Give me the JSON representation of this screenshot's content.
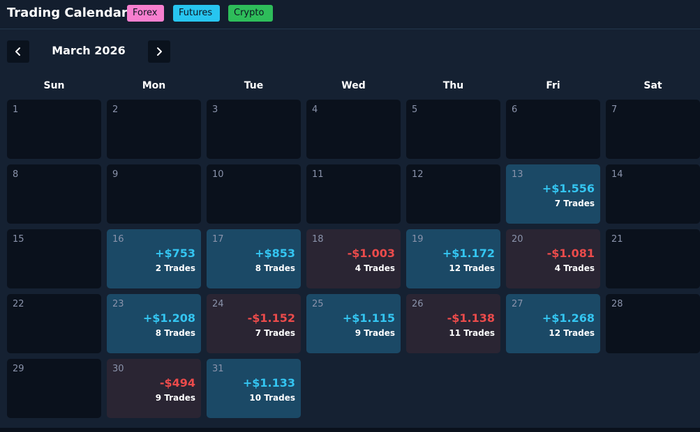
{
  "header": {
    "title": "Trading Calendar",
    "tags": [
      {
        "label": "Forex",
        "color": "#f77fcf"
      },
      {
        "label": "Futures",
        "color": "#27c5f0"
      },
      {
        "label": "Crypto",
        "color": "#2ebd5a"
      }
    ]
  },
  "nav": {
    "month_label": "March 2026",
    "prev_icon": "chevron-left-icon",
    "next_icon": "chevron-right-icon"
  },
  "weekdays": [
    "Sun",
    "Mon",
    "Tue",
    "Wed",
    "Thu",
    "Fri",
    "Sat"
  ],
  "colors": {
    "profit_bg": "#1b4966",
    "loss_bg": "#2a2533",
    "profit_text": "#34c5f1",
    "loss_text": "#ec4b4b"
  },
  "days": [
    {
      "day": "1"
    },
    {
      "day": "2"
    },
    {
      "day": "3"
    },
    {
      "day": "4"
    },
    {
      "day": "5"
    },
    {
      "day": "6"
    },
    {
      "day": "7"
    },
    {
      "day": "8"
    },
    {
      "day": "9"
    },
    {
      "day": "10"
    },
    {
      "day": "11"
    },
    {
      "day": "12"
    },
    {
      "day": "13",
      "pnl": "+$1.556",
      "trades": "7 Trades",
      "result": "profit"
    },
    {
      "day": "14"
    },
    {
      "day": "15"
    },
    {
      "day": "16",
      "pnl": "+$753",
      "trades": "2 Trades",
      "result": "profit"
    },
    {
      "day": "17",
      "pnl": "+$853",
      "trades": "8 Trades",
      "result": "profit"
    },
    {
      "day": "18",
      "pnl": "-$1.003",
      "trades": "4 Trades",
      "result": "loss"
    },
    {
      "day": "19",
      "pnl": "+$1.172",
      "trades": "12 Trades",
      "result": "profit"
    },
    {
      "day": "20",
      "pnl": "-$1.081",
      "trades": "4 Trades",
      "result": "loss"
    },
    {
      "day": "21"
    },
    {
      "day": "22"
    },
    {
      "day": "23",
      "pnl": "+$1.208",
      "trades": "8 Trades",
      "result": "profit"
    },
    {
      "day": "24",
      "pnl": "-$1.152",
      "trades": "7 Trades",
      "result": "loss"
    },
    {
      "day": "25",
      "pnl": "+$1.115",
      "trades": "9 Trades",
      "result": "profit"
    },
    {
      "day": "26",
      "pnl": "-$1.138",
      "trades": "11 Trades",
      "result": "loss"
    },
    {
      "day": "27",
      "pnl": "+$1.268",
      "trades": "12 Trades",
      "result": "profit"
    },
    {
      "day": "28"
    },
    {
      "day": "29"
    },
    {
      "day": "30",
      "pnl": "-$494",
      "trades": "9 Trades",
      "result": "loss"
    },
    {
      "day": "31",
      "pnl": "+$1.133",
      "trades": "10 Trades",
      "result": "profit"
    }
  ]
}
